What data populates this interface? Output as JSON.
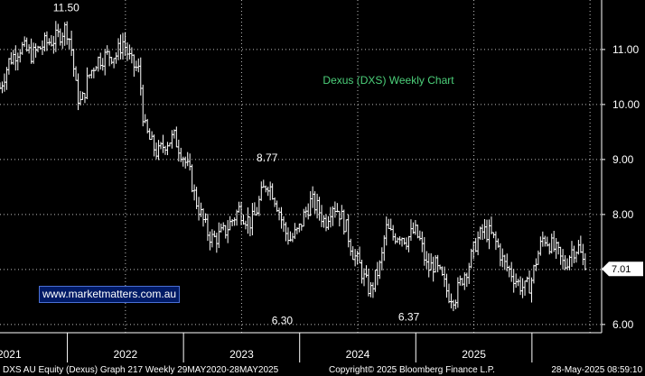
{
  "chart_data": {
    "type": "ohlc",
    "title": "Dexus (DXS) Weekly Chart",
    "xlabel": "",
    "ylabel": "",
    "ylim": [
      5.85,
      11.9
    ],
    "xlim": [
      2020.42,
      2025.6
    ],
    "y_ticks": [
      6.0,
      7.0,
      8.0,
      9.0,
      10.0,
      11.0
    ],
    "y_tick_labels": [
      "6.00",
      "7.00",
      "8.00",
      "9.00",
      "10.00",
      "11.00"
    ],
    "x_ticks": [
      2021.0,
      2022.0,
      2023.0,
      2024.0,
      2025.0
    ],
    "x_tick_labels": [
      "2021",
      "2022",
      "2023",
      "2024",
      "2025"
    ],
    "grid": true,
    "last_price": 7.01,
    "last_price_label": "7.01",
    "annotations": [
      {
        "text": "11.50",
        "x": 2020.99,
        "y": 11.5
      },
      {
        "text": "8.77",
        "x": 2022.72,
        "y": 8.77
      },
      {
        "text": "6.30",
        "x": 2022.85,
        "y": 6.3
      },
      {
        "text": "6.37",
        "x": 2023.94,
        "y": 6.37
      }
    ],
    "series": [
      {
        "name": "DXS AU Equity",
        "points": [
          [
            2020.42,
            10.3
          ],
          [
            2020.5,
            10.8
          ],
          [
            2020.6,
            11.05
          ],
          [
            2020.7,
            10.9
          ],
          [
            2020.8,
            11.1
          ],
          [
            2020.9,
            11.2
          ],
          [
            2020.99,
            11.4
          ],
          [
            2021.03,
            11.1
          ],
          [
            2021.08,
            10.2
          ],
          [
            2021.12,
            10.0
          ],
          [
            2021.18,
            10.5
          ],
          [
            2021.25,
            10.8
          ],
          [
            2021.35,
            10.9
          ],
          [
            2021.42,
            10.9
          ],
          [
            2021.48,
            11.15
          ],
          [
            2021.55,
            10.75
          ],
          [
            2021.62,
            10.6
          ],
          [
            2021.66,
            9.6
          ],
          [
            2021.72,
            9.3
          ],
          [
            2021.78,
            9.1
          ],
          [
            2021.84,
            9.3
          ],
          [
            2021.92,
            9.4
          ],
          [
            2021.99,
            9.1
          ],
          [
            2022.06,
            8.7
          ],
          [
            2022.1,
            8.3
          ],
          [
            2022.15,
            8.0
          ],
          [
            2022.2,
            7.7
          ],
          [
            2022.25,
            7.55
          ],
          [
            2022.3,
            7.6
          ],
          [
            2022.36,
            7.7
          ],
          [
            2022.42,
            7.9
          ],
          [
            2022.48,
            8.1
          ],
          [
            2022.53,
            7.95
          ],
          [
            2022.58,
            7.85
          ],
          [
            2022.62,
            8.0
          ],
          [
            2022.66,
            8.3
          ],
          [
            2022.72,
            8.6
          ],
          [
            2022.77,
            8.4
          ],
          [
            2022.82,
            8.1
          ],
          [
            2022.87,
            7.7
          ],
          [
            2022.92,
            7.55
          ],
          [
            2022.99,
            7.7
          ],
          [
            2023.04,
            8.0
          ],
          [
            2023.1,
            8.25
          ],
          [
            2023.16,
            8.1
          ],
          [
            2023.22,
            7.85
          ],
          [
            2023.28,
            8.2
          ],
          [
            2023.34,
            8.05
          ],
          [
            2023.4,
            7.75
          ],
          [
            2023.46,
            7.3
          ],
          [
            2023.52,
            7.05
          ],
          [
            2023.56,
            6.8
          ],
          [
            2023.61,
            6.6
          ],
          [
            2023.66,
            6.9
          ],
          [
            2023.7,
            7.1
          ],
          [
            2023.74,
            7.75
          ],
          [
            2023.8,
            7.6
          ],
          [
            2023.86,
            7.65
          ],
          [
            2023.92,
            7.55
          ],
          [
            2023.99,
            7.7
          ],
          [
            2024.04,
            7.5
          ],
          [
            2024.1,
            7.0
          ],
          [
            2024.16,
            7.1
          ],
          [
            2024.22,
            6.85
          ],
          [
            2024.28,
            6.55
          ],
          [
            2024.34,
            6.5
          ],
          [
            2024.4,
            6.85
          ],
          [
            2024.46,
            7.1
          ],
          [
            2024.52,
            7.5
          ],
          [
            2024.58,
            7.7
          ],
          [
            2024.64,
            7.65
          ],
          [
            2024.7,
            7.45
          ],
          [
            2024.76,
            7.1
          ],
          [
            2024.82,
            6.95
          ],
          [
            2024.88,
            6.75
          ],
          [
            2024.94,
            6.65
          ],
          [
            2024.99,
            6.75
          ],
          [
            2025.04,
            7.2
          ],
          [
            2025.1,
            7.6
          ],
          [
            2025.16,
            7.45
          ],
          [
            2025.22,
            7.3
          ],
          [
            2025.28,
            7.05
          ],
          [
            2025.34,
            7.35
          ],
          [
            2025.4,
            7.4
          ],
          [
            2025.46,
            7.01
          ]
        ]
      }
    ]
  },
  "footer": {
    "left": "DXS AU Equity (Dexus) Graph 217  Weekly 29MAY2020-28MAY2025",
    "center": "Copyright© 2025 Bloomberg Finance L.P.",
    "right": "28-May-2025 08:59:10"
  },
  "watermark": "www.marketmatters.com.au",
  "colors": {
    "background": "#000000",
    "bars": "#ffffff",
    "grid": "#ffffff",
    "title": "#4cd07a",
    "price_tag": "#ffffff",
    "watermark_bg": "#001a66",
    "watermark_border": "#4a6fd4"
  }
}
